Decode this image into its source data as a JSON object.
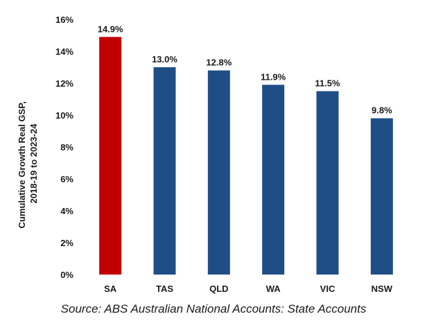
{
  "chart_data": {
    "type": "bar",
    "categories": [
      "SA",
      "TAS",
      "QLD",
      "WA",
      "VIC",
      "NSW"
    ],
    "values": [
      14.9,
      13.0,
      12.8,
      11.9,
      11.5,
      9.8
    ],
    "data_labels": [
      "14.9%",
      "13.0%",
      "12.8%",
      "11.9%",
      "11.5%",
      "9.8%"
    ],
    "bar_colors": [
      "#c00000",
      "#1f4e87",
      "#1f4e87",
      "#1f4e87",
      "#1f4e87",
      "#1f4e87"
    ],
    "ylabel_lines": [
      "Cumulative Growth Real GSP,",
      "2018-19 to 2023-24"
    ],
    "ylim": [
      0,
      16
    ],
    "yticks": [
      0,
      2,
      4,
      6,
      8,
      10,
      12,
      14,
      16
    ],
    "ytick_labels": [
      "0%",
      "2%",
      "4%",
      "6%",
      "8%",
      "10%",
      "12%",
      "14%",
      "16%"
    ],
    "grid": false,
    "legend": "none"
  },
  "source": "Source: ABS Australian National Accounts: State Accounts"
}
